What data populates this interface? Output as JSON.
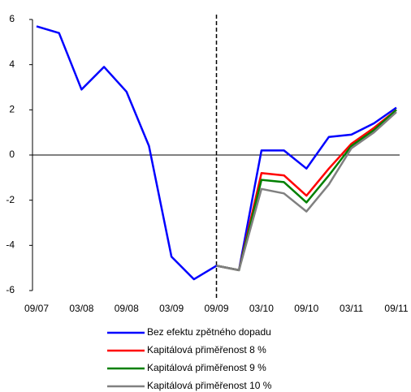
{
  "chart_data": {
    "type": "line",
    "categories": [
      "09/07",
      null,
      "03/08",
      null,
      "09/08",
      null,
      "03/09",
      null,
      "09/09",
      null,
      "03/10",
      null,
      "09/10",
      null,
      "03/11",
      null,
      "09/11"
    ],
    "series": [
      {
        "name": "Bez efektu zpětného dopadu",
        "color": "#0000ff",
        "values": [
          5.7,
          5.4,
          2.9,
          3.9,
          2.8,
          0.4,
          -4.5,
          -5.5,
          -4.9,
          -5.1,
          0.2,
          0.2,
          -0.6,
          0.8,
          0.9,
          1.4,
          2.1
        ]
      },
      {
        "name": "Kapitálová přiměřenost 8 %",
        "color": "#ff0000",
        "values": [
          null,
          null,
          null,
          null,
          null,
          null,
          null,
          null,
          -4.9,
          -5.1,
          -0.8,
          -0.9,
          -1.8,
          -0.6,
          0.5,
          1.2,
          2.0
        ]
      },
      {
        "name": "Kapitálová přiměřenost 9 %",
        "color": "#008000",
        "values": [
          null,
          null,
          null,
          null,
          null,
          null,
          null,
          null,
          -4.9,
          -5.1,
          -1.1,
          -1.2,
          -2.1,
          -0.9,
          0.4,
          1.1,
          2.0
        ]
      },
      {
        "name": "Kapitálová přiměřenost 10 %",
        "color": "#808080",
        "values": [
          null,
          null,
          null,
          null,
          null,
          null,
          null,
          null,
          -4.9,
          -5.1,
          -1.5,
          -1.7,
          -2.5,
          -1.3,
          0.3,
          1.0,
          1.9
        ]
      }
    ],
    "ylim": [
      -6,
      6
    ],
    "yticks": [
      -6,
      -4,
      -2,
      0,
      2,
      4,
      6
    ],
    "vline_at": "09/09",
    "legend": "bottom"
  }
}
